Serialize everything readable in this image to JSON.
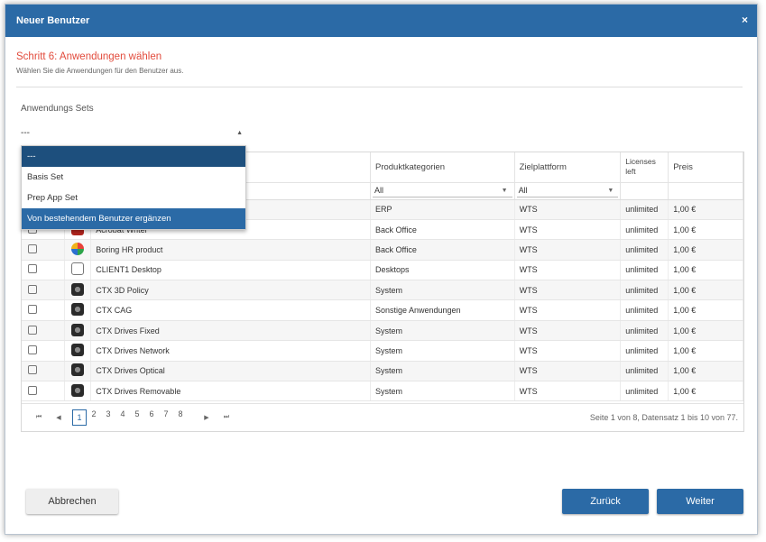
{
  "dialog": {
    "title": "Neuer Benutzer",
    "close_glyph": "×"
  },
  "step": {
    "title": "Schritt 6: Anwendungen wählen",
    "subtitle": "Wählen Sie die Anwendungen für den Benutzer aus."
  },
  "sets": {
    "label": "Anwendungs Sets",
    "selected": "---",
    "options": [
      "---",
      "Basis Set",
      "Prep App Set",
      "Von bestehendem Benutzer ergänzen"
    ],
    "highlighted": "Von bestehendem Benutzer ergänzen"
  },
  "grid": {
    "columns": {
      "category": "Produktkategorien",
      "platform": "Zielplattform",
      "licenses": "Licenses left",
      "price": "Preis"
    },
    "filters": {
      "category": "All",
      "platform": "All"
    },
    "rows": [
      {
        "name": "",
        "icon": "app-icon",
        "category": "ERP",
        "platform": "WTS",
        "licenses": "unlimited",
        "price": "1,00 €"
      },
      {
        "name": "Acrobat Writer",
        "icon": "pdf-icon",
        "category": "Back Office",
        "platform": "WTS",
        "licenses": "unlimited",
        "price": "1,00 €"
      },
      {
        "name": "Boring HR product",
        "icon": "globe-icon",
        "category": "Back Office",
        "platform": "WTS",
        "licenses": "unlimited",
        "price": "1,00 €"
      },
      {
        "name": "CLIENT1 Desktop",
        "icon": "desktop-icon",
        "category": "Desktops",
        "platform": "WTS",
        "licenses": "unlimited",
        "price": "1,00 €"
      },
      {
        "name": "CTX 3D Policy",
        "icon": "citrix-icon",
        "category": "System",
        "platform": "WTS",
        "licenses": "unlimited",
        "price": "1,00 €"
      },
      {
        "name": "CTX CAG",
        "icon": "citrix-icon",
        "category": "Sonstige Anwendungen",
        "platform": "WTS",
        "licenses": "unlimited",
        "price": "1,00 €"
      },
      {
        "name": "CTX Drives Fixed",
        "icon": "citrix-icon",
        "category": "System",
        "platform": "WTS",
        "licenses": "unlimited",
        "price": "1,00 €"
      },
      {
        "name": "CTX Drives Network",
        "icon": "citrix-icon",
        "category": "System",
        "platform": "WTS",
        "licenses": "unlimited",
        "price": "1,00 €"
      },
      {
        "name": "CTX Drives Optical",
        "icon": "citrix-icon",
        "category": "System",
        "platform": "WTS",
        "licenses": "unlimited",
        "price": "1,00 €"
      },
      {
        "name": "CTX Drives Removable",
        "icon": "citrix-icon",
        "category": "System",
        "platform": "WTS",
        "licenses": "unlimited",
        "price": "1,00 €"
      }
    ]
  },
  "pager": {
    "pages": [
      "1",
      "2",
      "3",
      "4",
      "5",
      "6",
      "7",
      "8"
    ],
    "current": "1",
    "info": "Seite 1 von 8, Datensatz 1 bis 10 von 77."
  },
  "buttons": {
    "cancel": "Abbrechen",
    "back": "Zurück",
    "next": "Weiter"
  },
  "colors": {
    "primary": "#2b6aa6",
    "step_title": "#e24b3c"
  }
}
